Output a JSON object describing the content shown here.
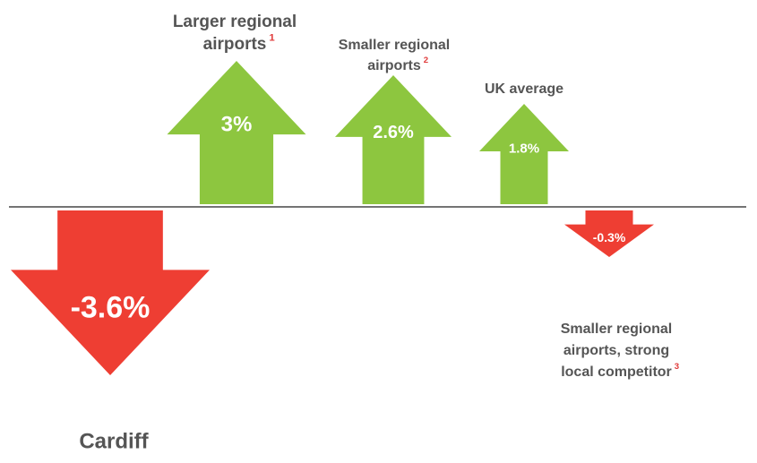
{
  "chart_data": {
    "type": "arrow",
    "categories": [
      [
        "Cardiff"
      ],
      [
        "Larger regional",
        "airports"
      ],
      [
        "Smaller regional",
        "airports"
      ],
      [
        "UK average"
      ],
      [
        "Smaller regional",
        "airports, strong",
        "local competitor"
      ]
    ],
    "superscripts": [
      null,
      "1",
      "2",
      null,
      "3"
    ],
    "values": [
      -3.6,
      3,
      2.6,
      1.8,
      -0.3
    ],
    "value_labels": [
      "-3.6%",
      "3%",
      "2.6%",
      "1.8%",
      "-0.3%"
    ],
    "positive_color": "#8dc63f",
    "negative_color": "#ee3e33"
  }
}
